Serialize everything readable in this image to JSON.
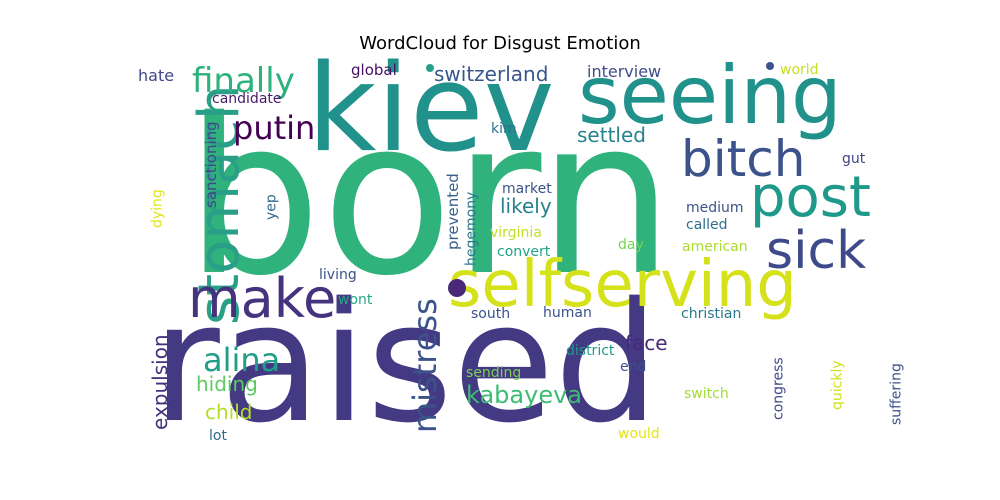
{
  "chart_data": {
    "type": "wordcloud",
    "title": "WordCloud for Disgust Emotion",
    "words": [
      {
        "text": "born",
        "color": "#2fb27c"
      },
      {
        "text": "raised",
        "color": "#443983"
      },
      {
        "text": "kiev",
        "color": "#21918c"
      },
      {
        "text": "seeing",
        "color": "#21918c"
      },
      {
        "text": "selfserving",
        "color": "#d5e21a"
      },
      {
        "text": "stomach",
        "color": "#2a9f87"
      },
      {
        "text": "make",
        "color": "#46337e"
      },
      {
        "text": "post",
        "color": "#1f9a8a"
      },
      {
        "text": "bitch",
        "color": "#3b528b"
      },
      {
        "text": "sick",
        "color": "#3e4a89"
      },
      {
        "text": "finally",
        "color": "#2db27d"
      },
      {
        "text": "putin",
        "color": "#440154"
      },
      {
        "text": "mistress",
        "color": "#3b528b"
      },
      {
        "text": "alina",
        "color": "#1f9e89"
      },
      {
        "text": "kabayeva",
        "color": "#3dbc74"
      },
      {
        "text": "switzerland",
        "color": "#39568c"
      },
      {
        "text": "settled",
        "color": "#26828e"
      },
      {
        "text": "likely",
        "color": "#26818e"
      },
      {
        "text": "expulsion",
        "color": "#46307e"
      },
      {
        "text": "hiding",
        "color": "#5ec962"
      },
      {
        "text": "child",
        "color": "#b5de2b"
      },
      {
        "text": "face",
        "color": "#482878"
      },
      {
        "text": "interview",
        "color": "#3e4c8a"
      },
      {
        "text": "global",
        "color": "#471063"
      },
      {
        "text": "candidate",
        "color": "#481a6c"
      },
      {
        "text": "hate",
        "color": "#404688"
      },
      {
        "text": "world",
        "color": "#c8e020"
      },
      {
        "text": "kim",
        "color": "#2c728e"
      },
      {
        "text": "sanctioning",
        "color": "#3f4788"
      },
      {
        "text": "prevented",
        "color": "#355f8d"
      },
      {
        "text": "hegemony",
        "color": "#2a788e"
      },
      {
        "text": "yep",
        "color": "#31688e"
      },
      {
        "text": "dying",
        "color": "#e2e418"
      },
      {
        "text": "market",
        "color": "#3b528b"
      },
      {
        "text": "virginia",
        "color": "#c2df23"
      },
      {
        "text": "convert",
        "color": "#20a486"
      },
      {
        "text": "medium",
        "color": "#3b528b"
      },
      {
        "text": "called",
        "color": "#2e6f8e"
      },
      {
        "text": "gut",
        "color": "#414487"
      },
      {
        "text": "day",
        "color": "#7ad151"
      },
      {
        "text": "american",
        "color": "#addc30"
      },
      {
        "text": "living",
        "color": "#3b528b"
      },
      {
        "text": "wont",
        "color": "#22a884"
      },
      {
        "text": "south",
        "color": "#3b528b"
      },
      {
        "text": "human",
        "color": "#3b528b"
      },
      {
        "text": "christian",
        "color": "#2a788e"
      },
      {
        "text": "district",
        "color": "#1f9a8a"
      },
      {
        "text": "sending",
        "color": "#7ad151"
      },
      {
        "text": "end",
        "color": "#3b528b"
      },
      {
        "text": "congress",
        "color": "#3f4788"
      },
      {
        "text": "quickly",
        "color": "#d0e11c"
      },
      {
        "text": "suffering",
        "color": "#3b528b"
      },
      {
        "text": "switch",
        "color": "#a2da37"
      },
      {
        "text": "lot",
        "color": "#31688e"
      },
      {
        "text": "would",
        "color": "#e5e419"
      }
    ]
  }
}
